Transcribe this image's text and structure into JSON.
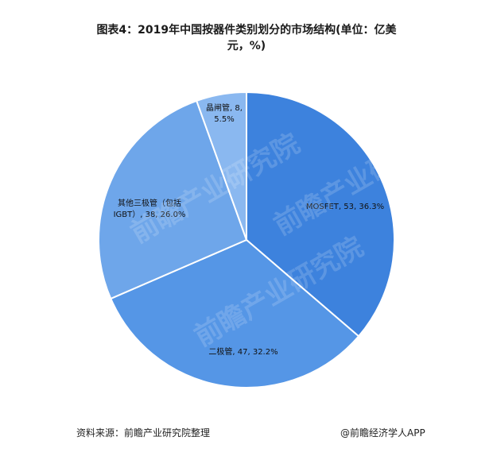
{
  "title_line1": "图表4：2019年中国按器件类别划分的市场结构(单位：亿美",
  "title_line2": "元，%)",
  "chart_data": {
    "type": "pie",
    "title": "图表4：2019年中国按器件类别划分的市场结构(单位：亿美元，%)",
    "slices": [
      {
        "name": "MOSFET",
        "value": 53,
        "percent": 36.3,
        "color": "#3d82dd",
        "label_lines": [
          "MOSFET, 53, 36.3%"
        ]
      },
      {
        "name": "二极管",
        "value": 47,
        "percent": 32.2,
        "color": "#5596e6",
        "label_lines": [
          "二极管, 47, 32.2%"
        ]
      },
      {
        "name": "其他三极管（包括IGBT）",
        "value": 38,
        "percent": 26.0,
        "color": "#6ea6ea",
        "label_lines": [
          "其他三极管（包括",
          "IGBT）, 38, 26.0%"
        ]
      },
      {
        "name": "晶闸管",
        "value": 8,
        "percent": 5.5,
        "color": "#8ab8f0",
        "label_lines": [
          "晶闸管, 8,",
          "5.5%"
        ]
      }
    ],
    "legend": "none"
  },
  "footer": {
    "source": "资料来源：前瞻产业研究院整理",
    "brand": "@前瞻经济学人APP"
  },
  "watermark": "前瞻产业研究院"
}
